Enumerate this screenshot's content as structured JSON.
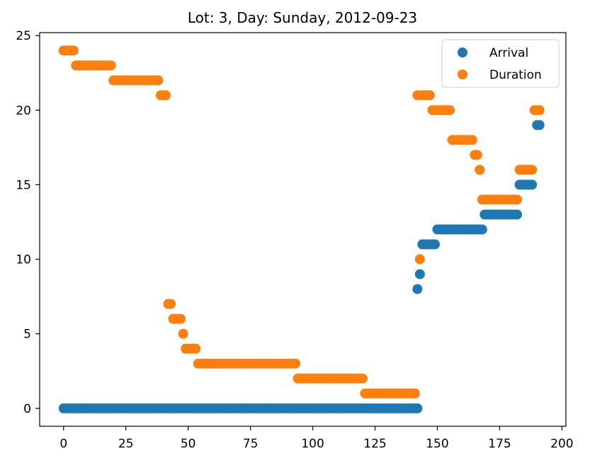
{
  "chart_data": {
    "type": "scatter",
    "title": "Lot: 3, Day: Sunday, 2012-09-23",
    "xlabel": "",
    "ylabel": "",
    "xlim": [
      -9.6,
      201.6
    ],
    "ylim": [
      -1.2,
      25.2
    ],
    "xticks": [
      0,
      25,
      50,
      75,
      100,
      125,
      150,
      175,
      200
    ],
    "yticks": [
      0,
      5,
      10,
      15,
      20,
      25
    ],
    "grid": false,
    "legend_position": "top-right",
    "series": [
      {
        "name": "Arrival",
        "color": "#1f77b4",
        "segments": [
          {
            "x_start": 0,
            "x_end": 142,
            "y": 0
          },
          {
            "x_start": 142,
            "x_end": 142,
            "y": 8
          },
          {
            "x_start": 143,
            "x_end": 143,
            "y": 9
          },
          {
            "x_start": 144,
            "x_end": 149,
            "y": 11
          },
          {
            "x_start": 150,
            "x_end": 168,
            "y": 12
          },
          {
            "x_start": 169,
            "x_end": 182,
            "y": 13
          },
          {
            "x_start": 183,
            "x_end": 188,
            "y": 15
          },
          {
            "x_start": 190,
            "x_end": 191,
            "y": 19
          }
        ]
      },
      {
        "name": "Duration",
        "color": "#ff7f0e",
        "segments": [
          {
            "x_start": 0,
            "x_end": 4,
            "y": 24
          },
          {
            "x_start": 5,
            "x_end": 19,
            "y": 23
          },
          {
            "x_start": 20,
            "x_end": 38,
            "y": 22
          },
          {
            "x_start": 39,
            "x_end": 41,
            "y": 21
          },
          {
            "x_start": 42,
            "x_end": 43,
            "y": 7
          },
          {
            "x_start": 44,
            "x_end": 47,
            "y": 6
          },
          {
            "x_start": 48,
            "x_end": 48,
            "y": 5
          },
          {
            "x_start": 49,
            "x_end": 53,
            "y": 4
          },
          {
            "x_start": 54,
            "x_end": 93,
            "y": 3
          },
          {
            "x_start": 94,
            "x_end": 120,
            "y": 2
          },
          {
            "x_start": 121,
            "x_end": 141,
            "y": 1
          },
          {
            "x_start": 142,
            "x_end": 142,
            "y": 21
          },
          {
            "x_start": 143,
            "x_end": 143,
            "y": 10
          },
          {
            "x_start": 144,
            "x_end": 147,
            "y": 21
          },
          {
            "x_start": 148,
            "x_end": 155,
            "y": 20
          },
          {
            "x_start": 156,
            "x_end": 164,
            "y": 18
          },
          {
            "x_start": 165,
            "x_end": 166,
            "y": 17
          },
          {
            "x_start": 167,
            "x_end": 167,
            "y": 16
          },
          {
            "x_start": 168,
            "x_end": 182,
            "y": 14
          },
          {
            "x_start": 183,
            "x_end": 188,
            "y": 16
          },
          {
            "x_start": 189,
            "x_end": 191,
            "y": 20
          }
        ]
      }
    ]
  }
}
